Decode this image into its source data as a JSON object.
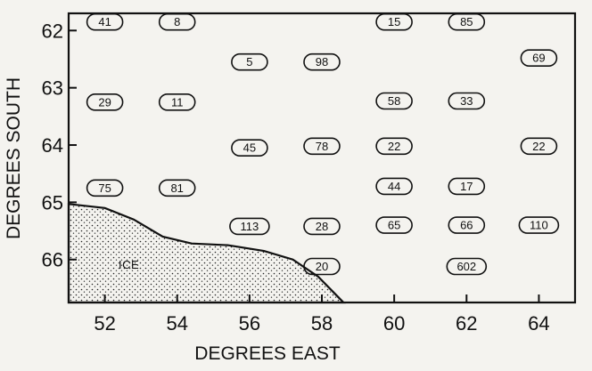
{
  "map": {
    "x_axis_title": "DEGREES EAST",
    "y_axis_title": "DEGREES SOUTH",
    "x_ticks": [
      "52",
      "54",
      "56",
      "58",
      "60",
      "62",
      "64"
    ],
    "y_ticks": [
      "62",
      "63",
      "64",
      "65",
      "66"
    ],
    "ice_label": "ICE",
    "x_range": [
      51,
      65
    ],
    "y_range": [
      61.7,
      66.75
    ],
    "coastline": [
      {
        "lon": 51.0,
        "lat": 65.03
      },
      {
        "lon": 52.0,
        "lat": 65.1
      },
      {
        "lon": 52.8,
        "lat": 65.3
      },
      {
        "lon": 53.6,
        "lat": 65.6
      },
      {
        "lon": 54.4,
        "lat": 65.72
      },
      {
        "lon": 55.4,
        "lat": 65.75
      },
      {
        "lon": 56.4,
        "lat": 65.85
      },
      {
        "lon": 57.2,
        "lat": 66.0
      },
      {
        "lon": 57.9,
        "lat": 66.3
      },
      {
        "lon": 58.6,
        "lat": 66.75
      }
    ],
    "stations": [
      {
        "lon": 52,
        "lat": 61.85,
        "value": "41"
      },
      {
        "lon": 54,
        "lat": 61.85,
        "value": "8"
      },
      {
        "lon": 60,
        "lat": 61.85,
        "value": "15"
      },
      {
        "lon": 62,
        "lat": 61.85,
        "value": "85"
      },
      {
        "lon": 56,
        "lat": 62.55,
        "value": "5"
      },
      {
        "lon": 58,
        "lat": 62.55,
        "value": "98"
      },
      {
        "lon": 64,
        "lat": 62.48,
        "value": "69"
      },
      {
        "lon": 52,
        "lat": 63.25,
        "value": "29"
      },
      {
        "lon": 54,
        "lat": 63.25,
        "value": "11"
      },
      {
        "lon": 60,
        "lat": 63.23,
        "value": "58"
      },
      {
        "lon": 62,
        "lat": 63.23,
        "value": "33"
      },
      {
        "lon": 56,
        "lat": 64.05,
        "value": "45"
      },
      {
        "lon": 58,
        "lat": 64.02,
        "value": "78"
      },
      {
        "lon": 60,
        "lat": 64.02,
        "value": "22"
      },
      {
        "lon": 64,
        "lat": 64.02,
        "value": "22"
      },
      {
        "lon": 52,
        "lat": 64.75,
        "value": "75"
      },
      {
        "lon": 54,
        "lat": 64.75,
        "value": "81"
      },
      {
        "lon": 60,
        "lat": 64.72,
        "value": "44"
      },
      {
        "lon": 62,
        "lat": 64.72,
        "value": "17"
      },
      {
        "lon": 56,
        "lat": 65.42,
        "value": "113"
      },
      {
        "lon": 58,
        "lat": 65.42,
        "value": "28"
      },
      {
        "lon": 60,
        "lat": 65.4,
        "value": "65"
      },
      {
        "lon": 62,
        "lat": 65.4,
        "value": "66"
      },
      {
        "lon": 64,
        "lat": 65.4,
        "value": "110"
      },
      {
        "lon": 58,
        "lat": 66.12,
        "value": "20"
      },
      {
        "lon": 62,
        "lat": 66.12,
        "value": "602"
      }
    ]
  }
}
